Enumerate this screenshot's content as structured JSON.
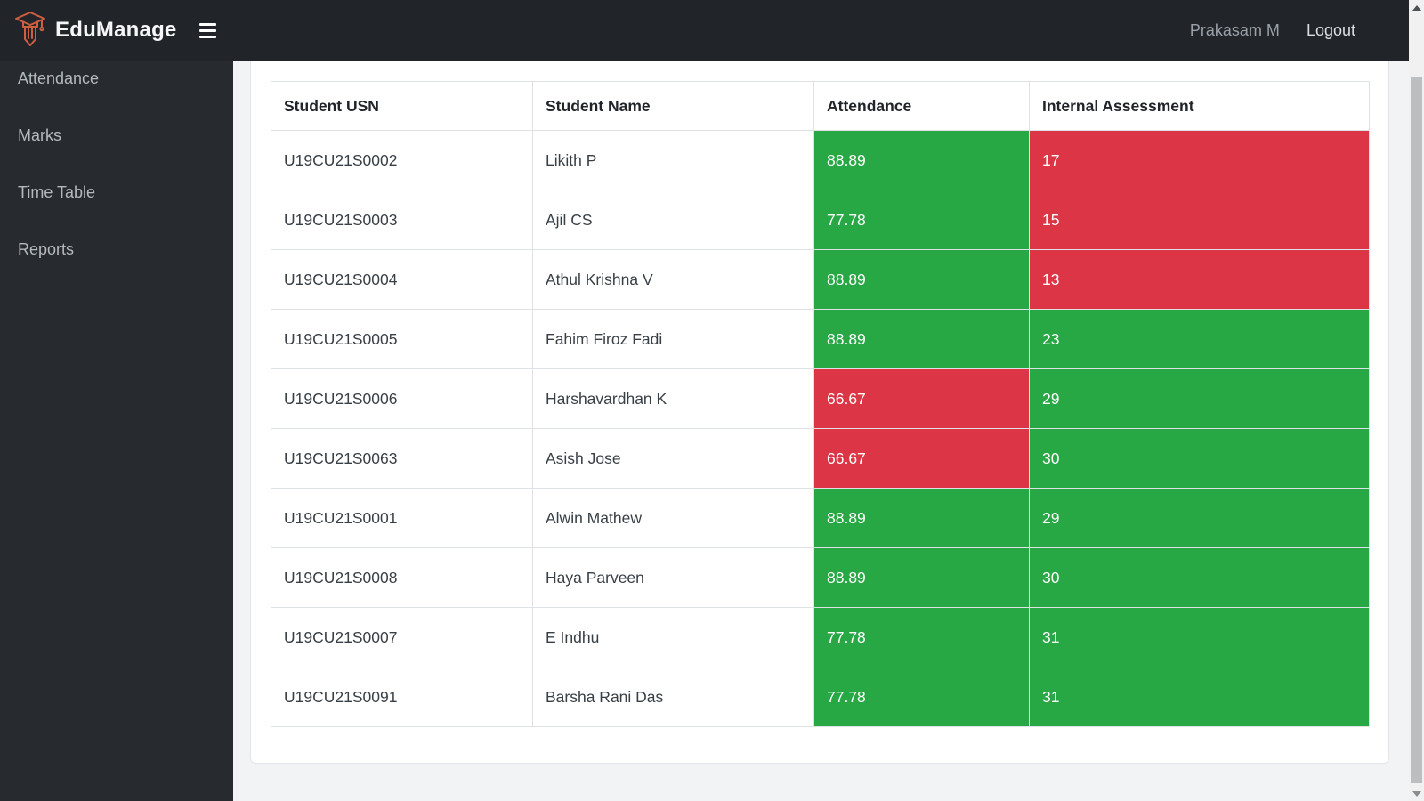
{
  "navbar": {
    "brand": "EduManage",
    "user_name": "Prakasam M",
    "logout_label": "Logout"
  },
  "icons": {
    "logo": "graduation-cap-pencil",
    "menu": "hamburger-three-bars",
    "logo_color": "#cf5f41"
  },
  "sidebar": {
    "items": [
      {
        "id": "attendance",
        "label": "Attendance"
      },
      {
        "id": "marks",
        "label": "Marks"
      },
      {
        "id": "time-table",
        "label": "Time Table"
      },
      {
        "id": "reports",
        "label": "Reports"
      }
    ]
  },
  "report_table": {
    "columns": [
      "Student USN",
      "Student Name",
      "Attendance",
      "Internal Assessment"
    ],
    "rows": [
      {
        "usn": "U19CU21S0002",
        "name": "Likith P",
        "attendance": "88.89",
        "attendance_status": "pass",
        "internal_assessment": "17",
        "ia_status": "fail"
      },
      {
        "usn": "U19CU21S0003",
        "name": "Ajil CS",
        "attendance": "77.78",
        "attendance_status": "pass",
        "internal_assessment": "15",
        "ia_status": "fail"
      },
      {
        "usn": "U19CU21S0004",
        "name": "Athul Krishna V",
        "attendance": "88.89",
        "attendance_status": "pass",
        "internal_assessment": "13",
        "ia_status": "fail"
      },
      {
        "usn": "U19CU21S0005",
        "name": "Fahim Firoz Fadi",
        "attendance": "88.89",
        "attendance_status": "pass",
        "internal_assessment": "23",
        "ia_status": "pass"
      },
      {
        "usn": "U19CU21S0006",
        "name": "Harshavardhan K",
        "attendance": "66.67",
        "attendance_status": "fail",
        "internal_assessment": "29",
        "ia_status": "pass"
      },
      {
        "usn": "U19CU21S0063",
        "name": "Asish Jose",
        "attendance": "66.67",
        "attendance_status": "fail",
        "internal_assessment": "30",
        "ia_status": "pass"
      },
      {
        "usn": "U19CU21S0001",
        "name": "Alwin Mathew",
        "attendance": "88.89",
        "attendance_status": "pass",
        "internal_assessment": "29",
        "ia_status": "pass"
      },
      {
        "usn": "U19CU21S0008",
        "name": "Haya Parveen",
        "attendance": "88.89",
        "attendance_status": "pass",
        "internal_assessment": "30",
        "ia_status": "pass"
      },
      {
        "usn": "U19CU21S0007",
        "name": "E Indhu",
        "attendance": "77.78",
        "attendance_status": "pass",
        "internal_assessment": "31",
        "ia_status": "pass"
      },
      {
        "usn": "U19CU21S0091",
        "name": "Barsha Rani Das",
        "attendance": "77.78",
        "attendance_status": "pass",
        "internal_assessment": "31",
        "ia_status": "pass"
      }
    ]
  },
  "status_colors": {
    "pass": "#28a745",
    "fail": "#dc3545"
  }
}
